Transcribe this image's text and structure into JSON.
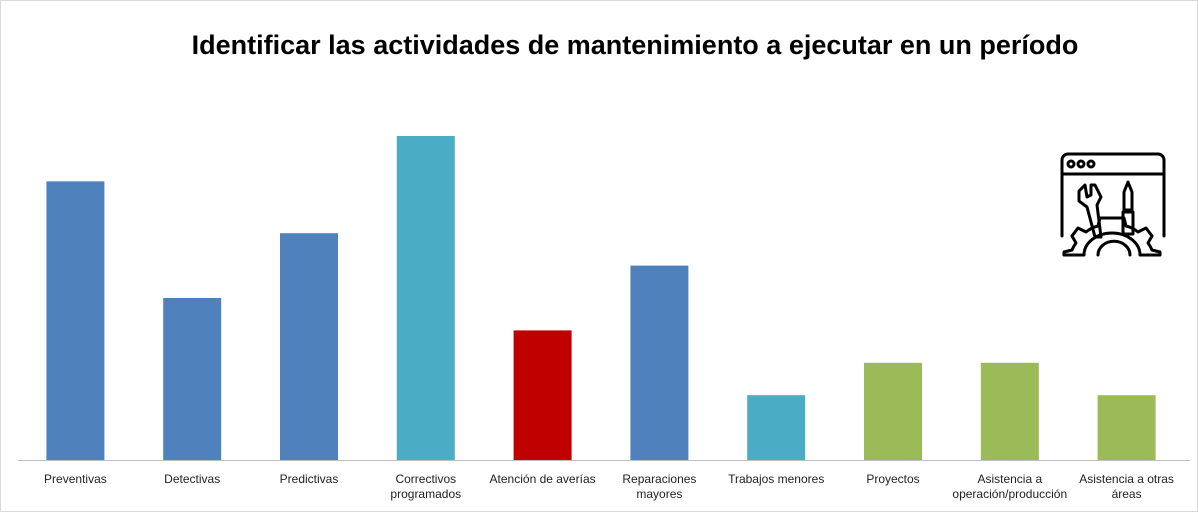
{
  "chart_data": {
    "type": "bar",
    "title": "Identificar las actividades  de mantenimiento a ejecutar en un período",
    "categories": [
      "Preventivas",
      "Detectivas",
      "Predictivas",
      "Correctivos programados",
      "Atención de averías",
      "Reparaciones mayores",
      "Trabajos menores",
      "Proyectos",
      "Asistencia a operación/producción",
      "Asistencia a otras áreas"
    ],
    "values": [
      8.6,
      5,
      7,
      10,
      4,
      6,
      2,
      3,
      3,
      2
    ],
    "colors": [
      "#4f81bd",
      "#4f81bd",
      "#4f81bd",
      "#4bacc6",
      "#c00000",
      "#4f81bd",
      "#4bacc6",
      "#9bbb59",
      "#9bbb59",
      "#9bbb59"
    ],
    "ylim": [
      0,
      10
    ]
  }
}
